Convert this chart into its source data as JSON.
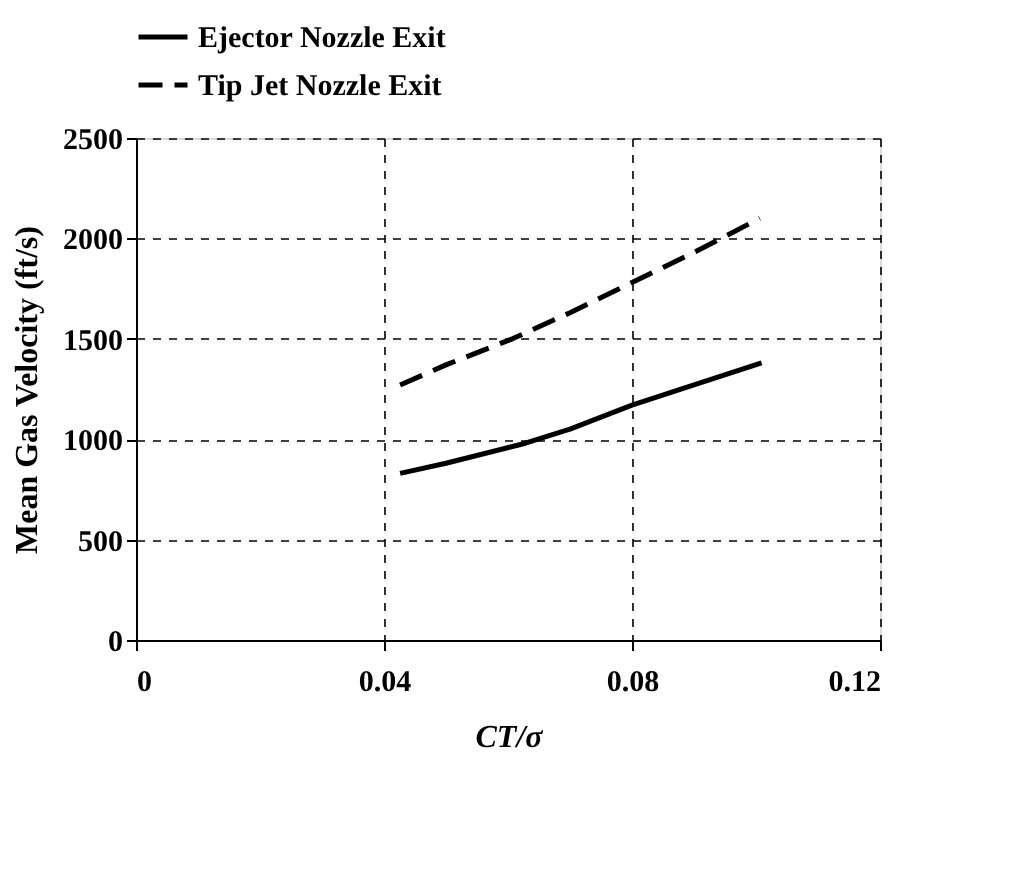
{
  "chart_data": {
    "type": "line",
    "xlabel": "CT/σ",
    "ylabel": "Mean Gas Velocity (ft/s)",
    "series": [
      {
        "name": "Ejector Nozzle Exit",
        "color": "#000000",
        "line_style": "solid",
        "x": [
          0.0426,
          0.05,
          0.0628,
          0.07,
          0.08,
          0.09,
          0.1009
        ],
        "values": [
          830,
          880,
          980,
          1050,
          1170,
          1270,
          1380
        ]
      },
      {
        "name": "Tip Jet Nozzle Exit",
        "color": "#000000",
        "line_style": "dashed",
        "x": [
          0.0426,
          0.05,
          0.0607,
          0.07,
          0.08,
          0.09,
          0.1006
        ],
        "values": [
          1270,
          1370,
          1500,
          1630,
          1780,
          1930,
          2100
        ]
      }
    ],
    "xlim": [
      0,
      0.12
    ],
    "xticks": [
      0,
      0.04,
      0.08,
      0.12
    ],
    "ylim": [
      0,
      2500
    ],
    "yticks": [
      0,
      500,
      1000,
      1500,
      2000,
      2500
    ],
    "grid": true,
    "legend": "top",
    "marker": "none"
  }
}
